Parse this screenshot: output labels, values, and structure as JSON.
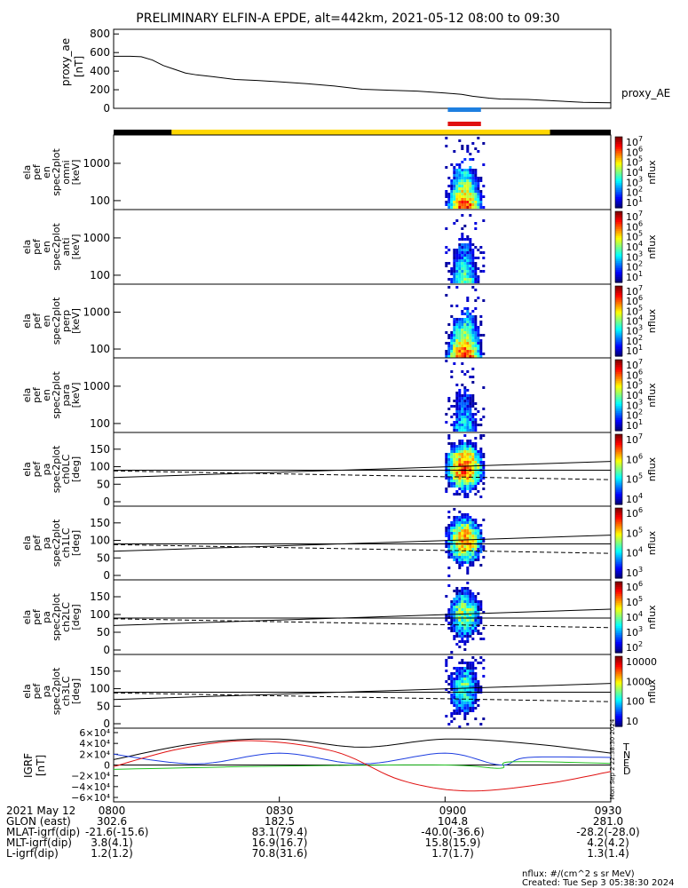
{
  "title": "PRELIMINARY ELFIN-A EPDE, alt=442km, 2021-05-12 08:00 to 09:30",
  "chart_data": [
    {
      "type": "line",
      "name": "proxy_ae",
      "ylabel": "proxy_ae [nT]",
      "legend": "proxy_AE",
      "yticks": [
        "800",
        "600",
        "400",
        "200",
        "0"
      ],
      "ylim": [
        0,
        850
      ],
      "x_minutes": [
        0,
        3,
        5,
        7,
        9,
        11,
        13,
        15,
        18,
        22,
        26,
        30,
        35,
        40,
        45,
        50,
        55,
        60,
        63,
        65,
        68,
        70,
        75,
        80,
        85,
        90
      ],
      "values": [
        560,
        560,
        555,
        520,
        460,
        420,
        380,
        360,
        340,
        310,
        300,
        285,
        265,
        240,
        205,
        195,
        185,
        165,
        150,
        130,
        110,
        100,
        95,
        80,
        65,
        60
      ]
    },
    {
      "type": "heatmap",
      "name": "ela_pef_en_spec2plot_omni",
      "ylabel_lines": [
        "ela",
        "pef",
        "en",
        "spec2plot",
        "omni",
        "[keV]"
      ],
      "yticks": [
        "1000",
        "100"
      ],
      "zlabel": "nflux",
      "ztick_exponents": [
        "7",
        "6",
        "5",
        "4",
        "3",
        "2",
        "1"
      ],
      "x_range_minutes": [
        60,
        67
      ],
      "peak_x_minutes": 63.5
    },
    {
      "type": "heatmap",
      "name": "ela_pef_en_spec2plot_anti",
      "ylabel_lines": [
        "ela",
        "pef",
        "en",
        "spec2plot",
        "anti",
        "[keV]"
      ],
      "yticks": [
        "1000",
        "100"
      ],
      "zlabel": "nflux",
      "ztick_exponents": [
        "7",
        "6",
        "5",
        "4",
        "3",
        "2",
        "1"
      ]
    },
    {
      "type": "heatmap",
      "name": "ela_pef_en_spec2plot_perp",
      "ylabel_lines": [
        "ela",
        "pef",
        "en",
        "spec2plot",
        "perp",
        "[keV]"
      ],
      "yticks": [
        "1000",
        "100"
      ],
      "zlabel": "nflux",
      "ztick_exponents": [
        "7",
        "6",
        "5",
        "4",
        "3",
        "2",
        "1"
      ]
    },
    {
      "type": "heatmap",
      "name": "ela_pef_en_spec2plot_para",
      "ylabel_lines": [
        "ela",
        "pef",
        "en",
        "spec2plot",
        "para",
        "[keV]"
      ],
      "yticks": [
        "1000",
        "100"
      ],
      "zlabel": "nflux",
      "ztick_exponents": [
        "7",
        "6",
        "5",
        "4",
        "3",
        "2",
        "1"
      ]
    },
    {
      "type": "heatmap",
      "name": "ela_pef_pa_spec2plot_ch0LC",
      "ylabel_lines": [
        "ela",
        "pef",
        "pa",
        "spec2plot",
        "ch0LC",
        "[deg]"
      ],
      "yticks": [
        "150",
        "100",
        "50",
        "0"
      ],
      "ylim": [
        0,
        180
      ],
      "zlabel": "nflux",
      "ztick_exponents": [
        "7",
        "6",
        "5",
        "4"
      ]
    },
    {
      "type": "heatmap",
      "name": "ela_pef_pa_spec2plot_ch1LC",
      "ylabel_lines": [
        "ela",
        "pef",
        "pa",
        "spec2plot",
        "ch1LC",
        "[deg]"
      ],
      "yticks": [
        "150",
        "100",
        "50",
        "0"
      ],
      "ylim": [
        0,
        180
      ],
      "zlabel": "nflux",
      "ztick_exponents": [
        "6",
        "5",
        "4",
        "3"
      ]
    },
    {
      "type": "heatmap",
      "name": "ela_pef_pa_spec2plot_ch2LC",
      "ylabel_lines": [
        "ela",
        "pef",
        "pa",
        "spec2plot",
        "ch2LC",
        "[deg]"
      ],
      "yticks": [
        "150",
        "100",
        "50",
        "0"
      ],
      "ylim": [
        0,
        180
      ],
      "zlabel": "nflux",
      "ztick_exponents": [
        "6",
        "5",
        "4",
        "3",
        "2"
      ]
    },
    {
      "type": "heatmap",
      "name": "ela_pef_pa_spec2plot_ch3LC",
      "ylabel_lines": [
        "ela",
        "pef",
        "pa",
        "spec2plot",
        "ch3LC",
        "[deg]"
      ],
      "yticks": [
        "150",
        "100",
        "50",
        "0"
      ],
      "ylim": [
        0,
        180
      ],
      "zlabel": "nflux",
      "zticks": [
        "10000",
        "1000",
        "100",
        "10"
      ]
    },
    {
      "type": "line",
      "name": "IGRF",
      "ylabel": "IGRF [nT]",
      "yticks": [
        "6×10⁴",
        "4×10⁴",
        "2×10⁴",
        "0",
        "−2×10⁴",
        "−4×10⁴",
        "−6×10⁴"
      ],
      "ylim": [
        -65000,
        65000
      ],
      "legend": [
        "T",
        "N",
        "E",
        "D"
      ],
      "series": [
        {
          "name": "T",
          "x_minutes": [
            0,
            15,
            30,
            45,
            60,
            75,
            90
          ],
          "values": [
            10000,
            40000,
            48000,
            33000,
            48000,
            40000,
            22000
          ]
        },
        {
          "name": "N",
          "x_minutes": [
            0,
            15,
            30,
            45,
            60,
            70,
            75,
            90
          ],
          "values": [
            20000,
            2000,
            22000,
            2000,
            22000,
            0,
            14000,
            14000
          ]
        },
        {
          "name": "E",
          "x_minutes": [
            0,
            30,
            60,
            70,
            72,
            90
          ],
          "values": [
            -8000,
            -2000,
            0,
            -6000,
            6000,
            3000
          ]
        },
        {
          "name": "D",
          "x_minutes": [
            0,
            12,
            25,
            40,
            52,
            64,
            78,
            90
          ],
          "values": [
            -3000,
            30000,
            45000,
            25000,
            -28000,
            -48000,
            -35000,
            -12000
          ]
        }
      ]
    }
  ],
  "time_ticks": [
    "0800",
    "0830",
    "0900",
    "0930"
  ],
  "side_stamp": "Mon Sep  2 22:38:30 2024",
  "footer": {
    "rows": [
      [
        "2021 May 12",
        "0800",
        "0830",
        "0900",
        "0930"
      ],
      [
        "GLON (east)",
        "302.6",
        "182.5",
        "104.8",
        "281.0"
      ],
      [
        "MLAT-igrf(dip)",
        "-21.6(-15.6)",
        "83.1(79.4)",
        "-40.0(-36.6)",
        "-28.2(-28.0)"
      ],
      [
        "MLT-igrf(dip)",
        "3.8(4.1)",
        "16.9(16.7)",
        "15.8(15.9)",
        "4.2(4.2)"
      ],
      [
        "L-igrf(dip)",
        "1.2(1.2)",
        "70.8(31.6)",
        "1.7(1.7)",
        "1.3(1.4)"
      ]
    ],
    "units": "nflux: #/(cm^2 s sr MeV)",
    "created": "Created: Tue Sep  3 05:38:30 2024"
  }
}
